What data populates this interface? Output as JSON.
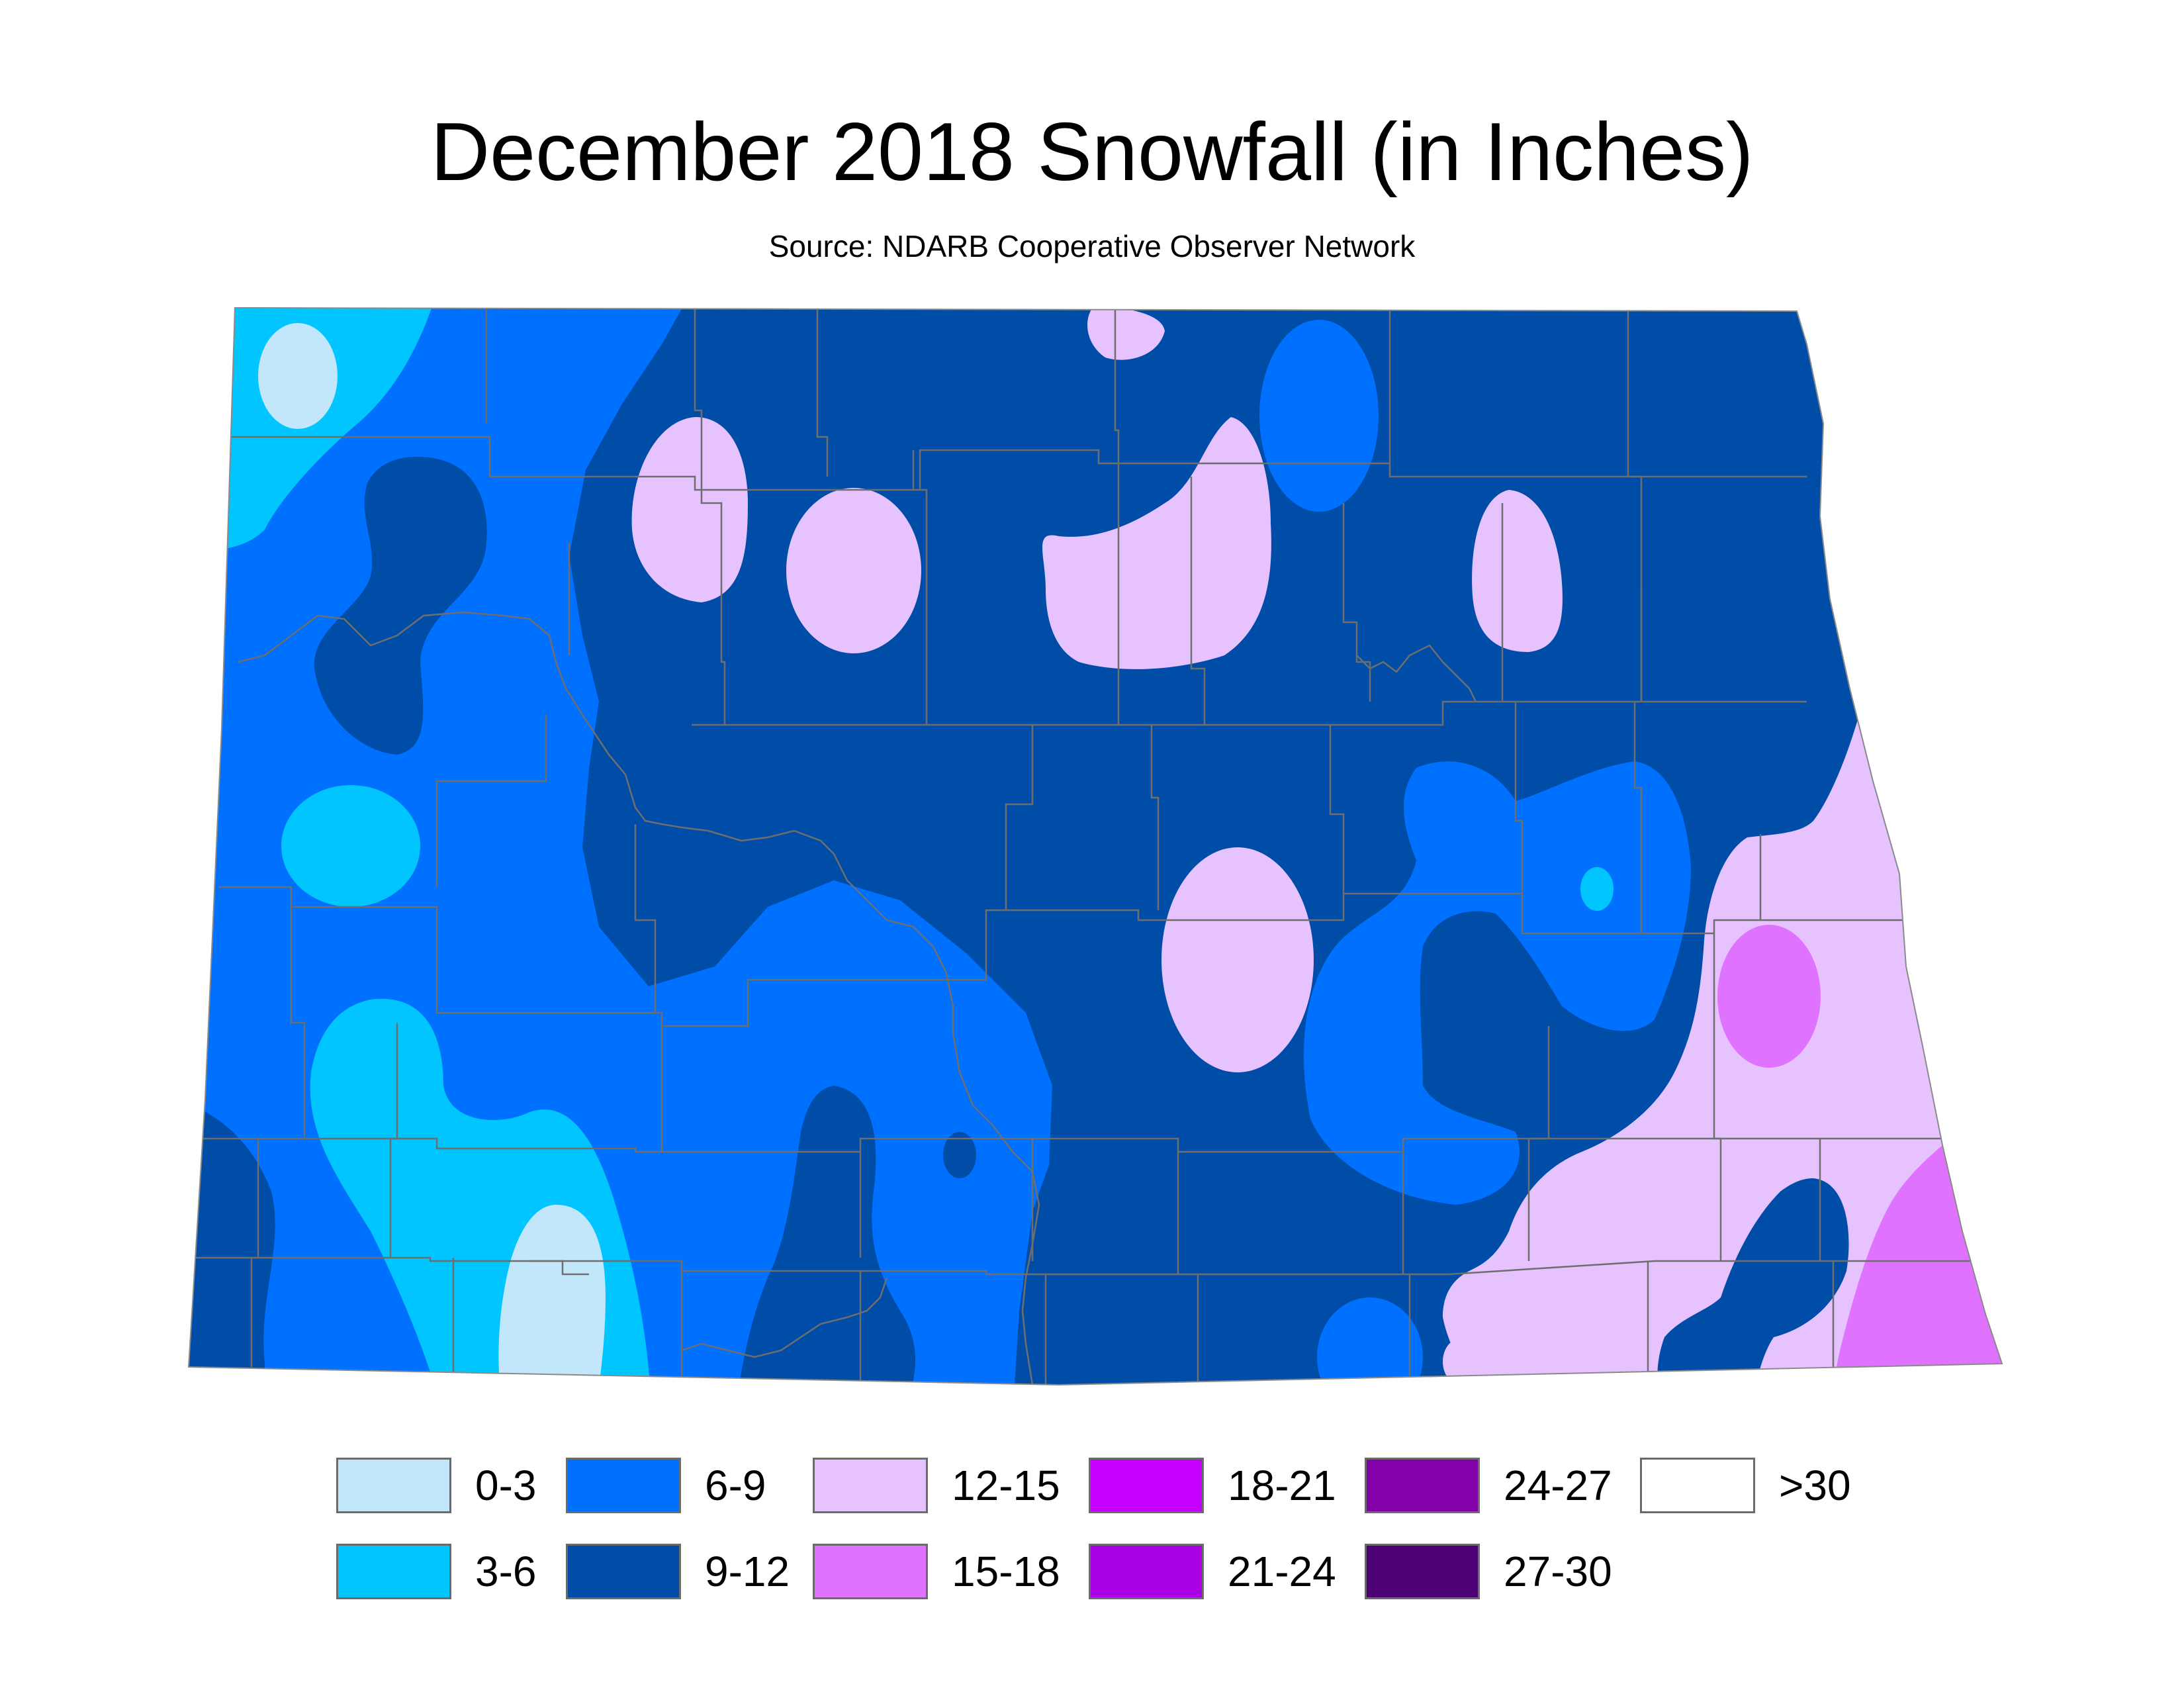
{
  "title": "December 2018 Snowfall (in Inches)",
  "subtitle": "Source: NDARB Cooperative Observer Network",
  "colors": {
    "c0_3": "#c2e6fa",
    "c3_6": "#00c5ff",
    "c6_9": "#0070ff",
    "c9_12": "#004da8",
    "c12_15": "#e6c2ff",
    "c15_18": "#df73ff",
    "c18_21": "#c500ff",
    "c21_24": "#a900e6",
    "c24_27": "#8400a8",
    "c27_30": "#4c0073",
    "c30plus": "#ffffff",
    "county_lines": "#6e6e6e",
    "river": "#6e6e6e"
  },
  "legend": [
    {
      "label": "0-3",
      "color": "#c2e6fa"
    },
    {
      "label": "3-6",
      "color": "#00c5ff"
    },
    {
      "label": "6-9",
      "color": "#0070ff"
    },
    {
      "label": "9-12",
      "color": "#004da8"
    },
    {
      "label": "12-15",
      "color": "#e6c2ff"
    },
    {
      "label": "15-18",
      "color": "#df73ff"
    },
    {
      "label": "18-21",
      "color": "#c500ff"
    },
    {
      "label": "21-24",
      "color": "#a900e6"
    },
    {
      "label": "24-27",
      "color": "#8400a8"
    },
    {
      "label": "27-30",
      "color": "#4c0073"
    },
    {
      "label": ">30",
      "color": "#ffffff"
    }
  ]
}
